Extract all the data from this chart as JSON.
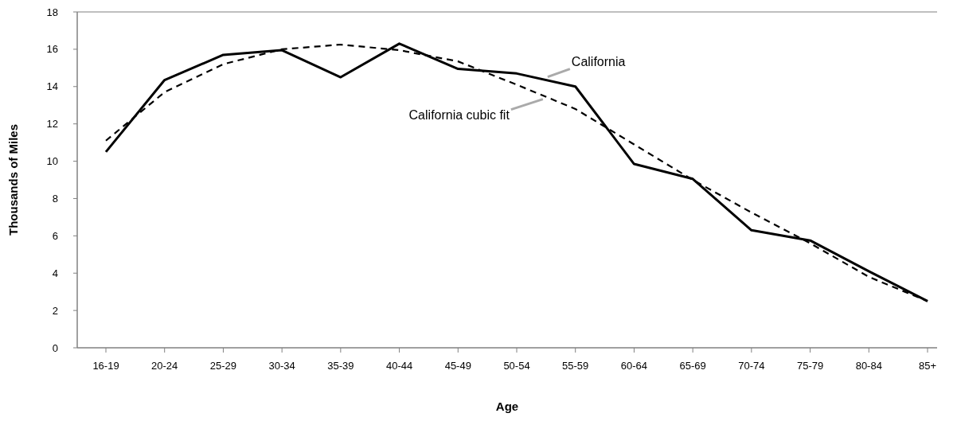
{
  "chart_data": {
    "type": "line",
    "xlabel": "Age",
    "ylabel": "Thousands of Miles",
    "categories": [
      "16-19",
      "20-24",
      "25-29",
      "30-34",
      "35-39",
      "40-44",
      "45-49",
      "50-54",
      "55-59",
      "60-64",
      "65-69",
      "70-74",
      "75-79",
      "80-84",
      "85+"
    ],
    "series": [
      {
        "name": "California",
        "color": "#000000",
        "line_style": "solid",
        "values": [
          10.5,
          14.35,
          15.7,
          15.95,
          14.5,
          16.3,
          14.95,
          14.7,
          14.0,
          9.85,
          9.05,
          6.3,
          5.75,
          4.1,
          2.5
        ]
      },
      {
        "name": "California cubic fit",
        "color": "#000000",
        "line_style": "dashed",
        "values": [
          11.1,
          13.7,
          15.2,
          16.0,
          16.25,
          15.95,
          15.35,
          14.1,
          12.8,
          10.9,
          9.0,
          7.25,
          5.6,
          3.8,
          2.5
        ]
      }
    ],
    "ylim": [
      0,
      18
    ],
    "yticks": [
      0,
      2,
      4,
      6,
      8,
      10,
      12,
      14,
      16,
      18
    ],
    "grid": false,
    "marker": "none"
  }
}
